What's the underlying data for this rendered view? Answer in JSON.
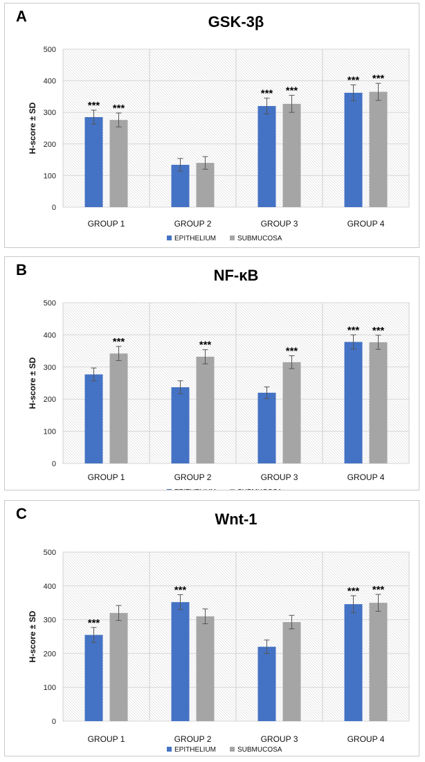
{
  "chart_data": [
    {
      "type": "bar",
      "panel_label": "A",
      "title": "GSK-3β",
      "ylabel": "H-score ± SD",
      "ylim": [
        0,
        500
      ],
      "yticks": [
        0,
        100,
        200,
        300,
        400,
        500
      ],
      "categories": [
        "GROUP 1",
        "GROUP 2",
        "GROUP 3",
        "GROUP 4"
      ],
      "series": [
        {
          "name": "EPITHELIUM",
          "color": "#4472C4",
          "values": [
            285,
            134,
            320,
            362
          ],
          "errors": [
            22,
            20,
            25,
            25
          ],
          "annotations": [
            "***",
            "",
            "***",
            "***"
          ]
        },
        {
          "name": "SUBMUCOSA",
          "color": "#A5A5A5",
          "values": [
            276,
            140,
            327,
            365
          ],
          "errors": [
            22,
            20,
            27,
            27
          ],
          "annotations": [
            "***",
            "",
            "***",
            "***"
          ]
        }
      ],
      "legend": "bottom"
    },
    {
      "type": "bar",
      "panel_label": "B",
      "title": "NF-κB",
      "ylabel": "H-score ± SD",
      "ylim": [
        0,
        500
      ],
      "yticks": [
        0,
        100,
        200,
        300,
        400,
        500
      ],
      "categories": [
        "GROUP 1",
        "GROUP 2",
        "GROUP 3",
        "GROUP 4"
      ],
      "series": [
        {
          "name": "EPITHELIUM",
          "color": "#4472C4",
          "values": [
            277,
            237,
            220,
            378
          ],
          "errors": [
            20,
            20,
            18,
            22
          ],
          "annotations": [
            "",
            "",
            "",
            "***"
          ]
        },
        {
          "name": "SUBMUCOSA",
          "color": "#A5A5A5",
          "values": [
            342,
            332,
            315,
            377
          ],
          "errors": [
            22,
            22,
            20,
            22
          ],
          "annotations": [
            "***",
            "***",
            "***",
            "***"
          ]
        }
      ],
      "legend": "bottom"
    },
    {
      "type": "bar",
      "panel_label": "C",
      "title": "Wnt-1",
      "ylabel": "H-score ± SD",
      "ylim": [
        0,
        500
      ],
      "yticks": [
        0,
        100,
        200,
        300,
        400,
        500
      ],
      "categories": [
        "GROUP 1",
        "GROUP 2",
        "GROUP 3",
        "GROUP 4"
      ],
      "series": [
        {
          "name": "EPITHELIUM",
          "color": "#4472C4",
          "values": [
            255,
            352,
            220,
            346
          ],
          "errors": [
            22,
            22,
            20,
            25
          ],
          "annotations": [
            "***",
            "***",
            "",
            "***"
          ]
        },
        {
          "name": "SUBMUCOSA",
          "color": "#A5A5A5",
          "values": [
            320,
            310,
            293,
            350
          ],
          "errors": [
            22,
            22,
            20,
            25
          ],
          "annotations": [
            "",
            "",
            "",
            "***"
          ]
        }
      ],
      "legend": "bottom"
    }
  ]
}
